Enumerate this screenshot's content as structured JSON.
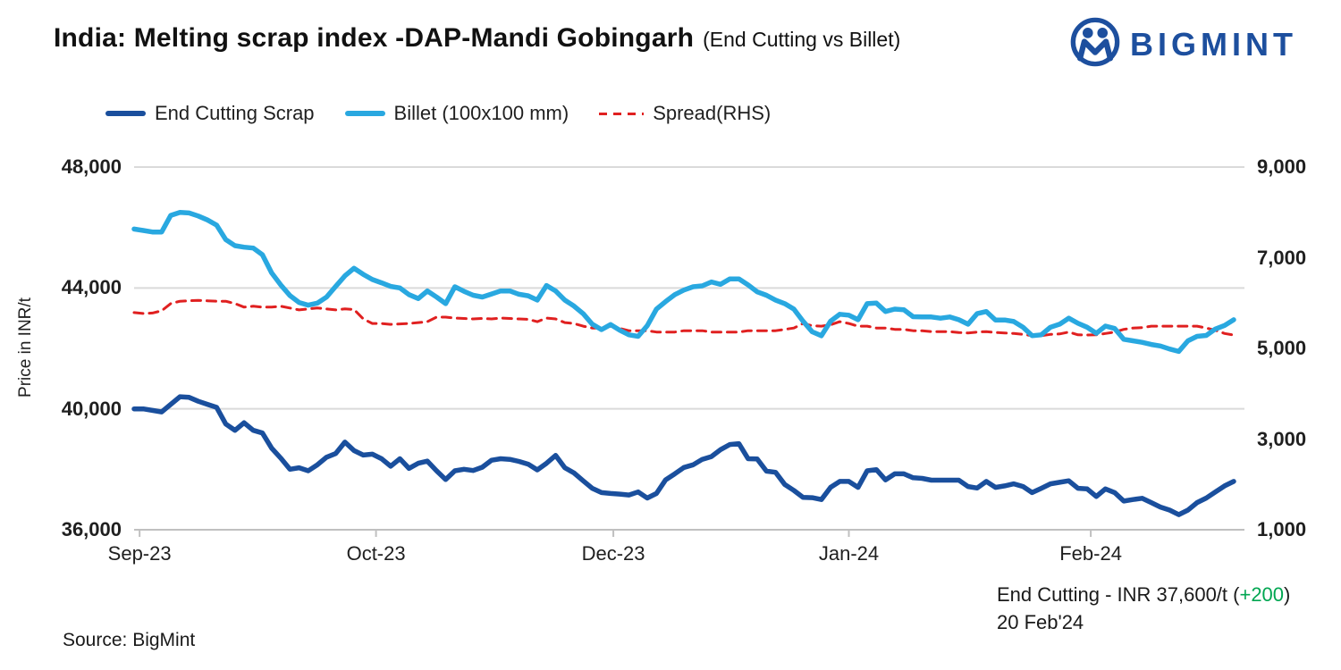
{
  "header": {
    "title": "India: Melting scrap index -DAP-Mandi Gobingarh",
    "subtitle": "(End Cutting vs Billet)",
    "brand": "BIGMINT",
    "brand_color": "#1d4f9e"
  },
  "annotation": {
    "line1_prefix": "End Cutting - INR 37,600/t (",
    "line1_change": "+200",
    "line1_suffix": ")",
    "line2": "20 Feb'24",
    "change_color": "#00a651"
  },
  "source": "Source: BigMint",
  "chart_data": {
    "type": "line",
    "title": "India: Melting scrap index -DAP-Mandi Gobingarh (End Cutting vs Billet)",
    "ylabel_left": "Price in INR/t",
    "y_left": {
      "min": 36000,
      "max": 48000,
      "tick_values": [
        48000,
        44000,
        40000,
        36000
      ],
      "tick_labels": [
        "48,000",
        "44,000",
        "40,000",
        "36,000"
      ]
    },
    "y_right": {
      "min": 1000,
      "max": 9000,
      "tick_values": [
        9000,
        7000,
        5000,
        3000,
        1000
      ],
      "tick_labels": [
        "9,000",
        "7,000",
        "5,000",
        "3,000",
        "1,000"
      ]
    },
    "x_ticks": [
      "Sep-23",
      "Oct-23",
      "Dec-23",
      "Jan-24",
      "Feb-24"
    ],
    "x_tick_indices": [
      0.6,
      26.4,
      52.3,
      78.0,
      104.4
    ],
    "grid": "horizontal-only",
    "legend_position": "top-left",
    "series": [
      {
        "name": "End Cutting Scrap",
        "color": "#1a4f9d",
        "axis": "left",
        "style": "solid",
        "values": [
          40000,
          40000,
          39950,
          39900,
          40150,
          40400,
          40380,
          40250,
          40150,
          40050,
          39500,
          39290,
          39540,
          39290,
          39200,
          38700,
          38370,
          38000,
          38050,
          37950,
          38150,
          38400,
          38520,
          38900,
          38620,
          38470,
          38500,
          38350,
          38100,
          38350,
          38030,
          38200,
          38270,
          37950,
          37660,
          37950,
          38000,
          37960,
          38070,
          38300,
          38350,
          38330,
          38260,
          38170,
          37980,
          38200,
          38460,
          38050,
          37880,
          37620,
          37370,
          37230,
          37200,
          37180,
          37150,
          37250,
          37050,
          37200,
          37650,
          37850,
          38060,
          38150,
          38330,
          38420,
          38650,
          38820,
          38850,
          38350,
          38340,
          37940,
          37900,
          37500,
          37300,
          37070,
          37060,
          37000,
          37400,
          37600,
          37600,
          37400,
          37950,
          37990,
          37650,
          37850,
          37850,
          37720,
          37700,
          37640,
          37640,
          37640,
          37640,
          37430,
          37380,
          37600,
          37400,
          37450,
          37520,
          37430,
          37230,
          37370,
          37520,
          37570,
          37620,
          37370,
          37350,
          37100,
          37350,
          37230,
          36950,
          37000,
          37040,
          36900,
          36750,
          36650,
          36500,
          36650,
          36900,
          37050,
          37250,
          37450,
          37600
        ]
      },
      {
        "name": "Billet (100x100 mm)",
        "color": "#29a8e0",
        "axis": "left",
        "style": "solid",
        "values": [
          45950,
          45900,
          45850,
          45850,
          46400,
          46500,
          46480,
          46380,
          46250,
          46080,
          45600,
          45400,
          45350,
          45320,
          45100,
          44500,
          44100,
          43750,
          43520,
          43430,
          43500,
          43700,
          44050,
          44400,
          44650,
          44450,
          44280,
          44170,
          44050,
          44000,
          43780,
          43650,
          43900,
          43700,
          43480,
          44040,
          43890,
          43760,
          43700,
          43800,
          43900,
          43900,
          43790,
          43740,
          43600,
          44080,
          43900,
          43600,
          43400,
          43150,
          42800,
          42620,
          42790,
          42600,
          42450,
          42400,
          42750,
          43300,
          43550,
          43780,
          43930,
          44040,
          44070,
          44200,
          44120,
          44300,
          44300,
          44100,
          43870,
          43760,
          43600,
          43480,
          43300,
          42900,
          42550,
          42420,
          42900,
          43130,
          43100,
          42950,
          43480,
          43500,
          43220,
          43300,
          43280,
          43050,
          43040,
          43040,
          43000,
          43040,
          42950,
          42800,
          43150,
          43220,
          42940,
          42940,
          42890,
          42700,
          42420,
          42450,
          42700,
          42800,
          43000,
          42830,
          42700,
          42500,
          42740,
          42660,
          42300,
          42250,
          42200,
          42130,
          42080,
          41980,
          41900,
          42250,
          42400,
          42430,
          42640,
          42760,
          42950
        ]
      },
      {
        "name": "Spread(RHS)",
        "color": "#e02020",
        "axis": "right",
        "style": "dashed",
        "values": [
          5790,
          5770,
          5780,
          5830,
          5990,
          6040,
          6050,
          6060,
          6050,
          6040,
          6040,
          5990,
          5910,
          5930,
          5910,
          5910,
          5930,
          5890,
          5850,
          5870,
          5890,
          5870,
          5850,
          5870,
          5860,
          5650,
          5550,
          5550,
          5530,
          5540,
          5550,
          5570,
          5590,
          5690,
          5690,
          5670,
          5660,
          5650,
          5660,
          5650,
          5670,
          5660,
          5650,
          5640,
          5590,
          5670,
          5650,
          5570,
          5550,
          5490,
          5450,
          5450,
          5490,
          5440,
          5390,
          5390,
          5390,
          5360,
          5360,
          5360,
          5390,
          5390,
          5390,
          5360,
          5360,
          5360,
          5360,
          5390,
          5390,
          5390,
          5390,
          5420,
          5450,
          5550,
          5500,
          5490,
          5520,
          5590,
          5550,
          5490,
          5490,
          5450,
          5450,
          5420,
          5420,
          5390,
          5390,
          5370,
          5370,
          5370,
          5350,
          5340,
          5360,
          5370,
          5350,
          5340,
          5330,
          5310,
          5280,
          5280,
          5310,
          5320,
          5360,
          5300,
          5295,
          5300,
          5330,
          5360,
          5420,
          5450,
          5460,
          5490,
          5490,
          5490,
          5490,
          5490,
          5490,
          5450,
          5400,
          5330,
          5295
        ]
      }
    ]
  }
}
